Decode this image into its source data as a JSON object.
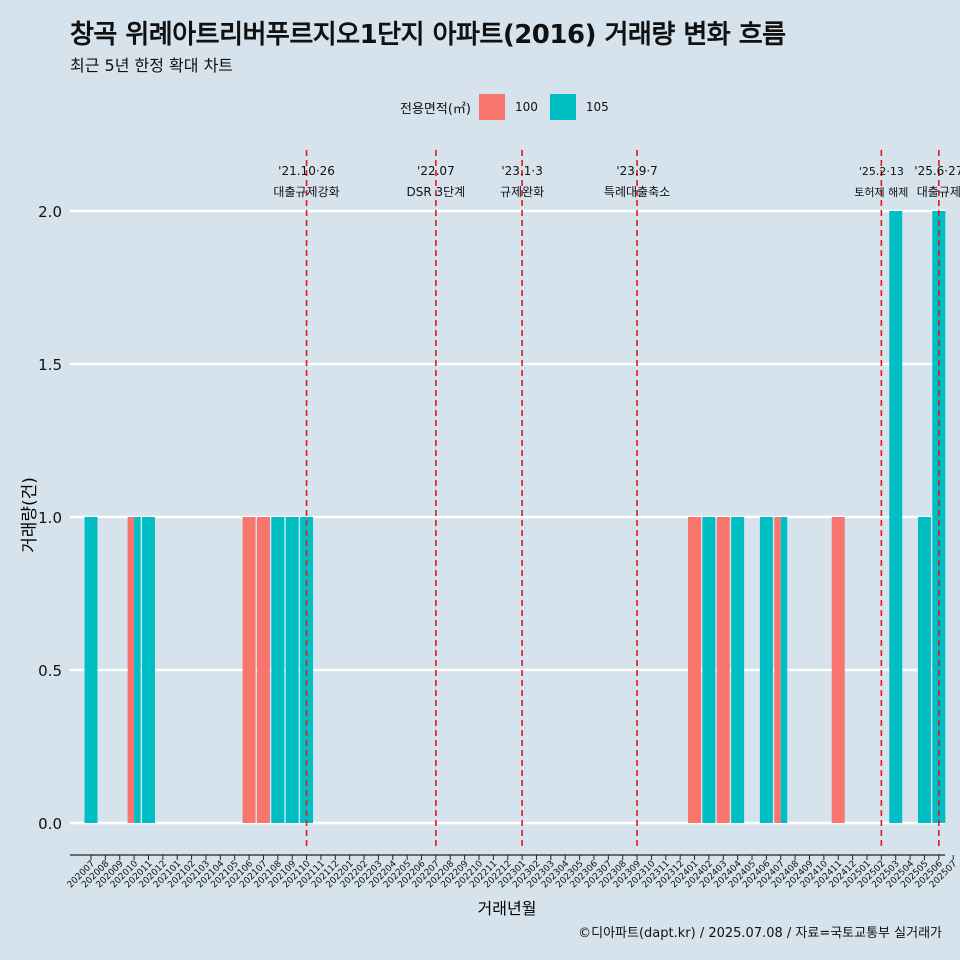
{
  "title": "창곡 위례아트리버푸르지오1단지 아파트(2016) 거래량 변화 흐름",
  "subtitle": "최근 5년 한정 확대 차트",
  "caption": "©디아파트(dapt.kr) / 2025.07.08 / 자료=국토교통부 실거래가",
  "legend": {
    "title": "전용면적(㎡)",
    "items": [
      {
        "label": "100",
        "color": "#f8766d"
      },
      {
        "label": "105",
        "color": "#00bfc4"
      }
    ]
  },
  "chart_data": {
    "type": "bar",
    "xlabel": "거래년월",
    "ylabel": "거래량(건)",
    "ylim": [
      0,
      2.0
    ],
    "yticks": [
      0.0,
      0.5,
      1.0,
      1.5,
      2.0
    ],
    "grid": true,
    "legend_position": "top",
    "categories": [
      "202007",
      "202008",
      "202009",
      "202010",
      "202011",
      "202012",
      "202101",
      "202102",
      "202103",
      "202104",
      "202105",
      "202106",
      "202107",
      "202108",
      "202109",
      "202110",
      "202111",
      "202112",
      "202201",
      "202202",
      "202203",
      "202204",
      "202205",
      "202206",
      "202207",
      "202208",
      "202209",
      "202210",
      "202211",
      "202212",
      "202301",
      "202302",
      "202303",
      "202304",
      "202305",
      "202306",
      "202307",
      "202308",
      "202309",
      "202310",
      "202311",
      "202312",
      "202401",
      "202402",
      "202403",
      "202404",
      "202405",
      "202406",
      "202407",
      "202408",
      "202409",
      "202410",
      "202411",
      "202412",
      "202501",
      "202502",
      "202503",
      "202504",
      "202505",
      "202506",
      "202507"
    ],
    "series": [
      {
        "name": "100",
        "color": "#f8766d",
        "values": [
          0,
          0,
          0,
          1,
          0,
          0,
          0,
          0,
          0,
          0,
          0,
          1,
          1,
          0,
          0,
          0,
          0,
          0,
          0,
          0,
          0,
          0,
          0,
          0,
          0,
          0,
          0,
          0,
          0,
          0,
          0,
          0,
          0,
          0,
          0,
          0,
          0,
          0,
          0,
          0,
          0,
          0,
          1,
          0,
          1,
          0,
          0,
          0,
          1,
          0,
          0,
          0,
          1,
          0,
          0,
          0,
          0,
          0,
          0,
          0,
          0
        ]
      },
      {
        "name": "105",
        "color": "#00bfc4",
        "values": [
          1,
          0,
          0,
          1,
          1,
          0,
          0,
          0,
          0,
          0,
          0,
          0,
          0,
          1,
          1,
          1,
          0,
          0,
          0,
          0,
          0,
          0,
          0,
          0,
          0,
          0,
          0,
          0,
          0,
          0,
          0,
          0,
          0,
          0,
          0,
          0,
          0,
          0,
          0,
          0,
          0,
          0,
          0,
          1,
          0,
          1,
          0,
          1,
          1,
          0,
          0,
          0,
          0,
          0,
          0,
          0,
          2,
          0,
          1,
          2,
          0
        ]
      }
    ],
    "annotations": [
      {
        "month": "202110",
        "date": "'21.10·26",
        "label": "대출규제강화"
      },
      {
        "month": "202207",
        "date": "'22.07",
        "label": "DSR 3단계"
      },
      {
        "month": "202301",
        "date": "'23.1·3",
        "label": "규제완화"
      },
      {
        "month": "202309",
        "date": "'23.9·7",
        "label": "특례대출축소"
      },
      {
        "month": "202502",
        "date": "'25.2·13",
        "label": "토허제 해제"
      },
      {
        "month": "202506",
        "date": "'25.6·27",
        "label": "대출규제"
      }
    ]
  }
}
